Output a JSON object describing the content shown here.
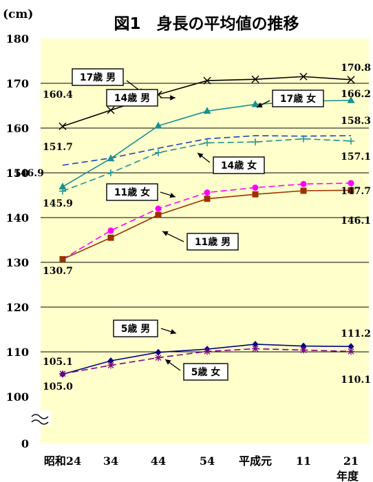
{
  "chart_data": {
    "type": "line",
    "title": "図1　身長の平均値の推移",
    "yunit": "(cm)",
    "ylim": [
      100,
      180
    ],
    "y_ticks": [
      "0",
      "100",
      "110",
      "120",
      "130",
      "140",
      "150",
      "160",
      "170",
      "180"
    ],
    "y_break": true,
    "categories": [
      "昭和24",
      "34",
      "44",
      "54",
      "平成元",
      "11",
      "21"
    ],
    "x_extra_label": "年度",
    "x": [
      24,
      34,
      44,
      54,
      64,
      74,
      84
    ],
    "grid": true,
    "series": [
      {
        "name": "17歳 男",
        "color": "#000000",
        "dash": "solid",
        "marker": "x",
        "x": [
          24,
          34,
          44,
          54,
          64,
          74,
          84
        ],
        "values": [
          160.4,
          164.0,
          167.5,
          170.6,
          170.9,
          171.5,
          170.8
        ]
      },
      {
        "name": "17歳 女",
        "color": "#1f3fbf",
        "dash": "dash",
        "marker": "none",
        "x": [
          24,
          34,
          44,
          54,
          64,
          74,
          84
        ],
        "values": [
          151.7,
          153.3,
          155.5,
          157.6,
          158.3,
          158.2,
          158.3
        ]
      },
      {
        "name": "14歳 男",
        "color": "#1a9090",
        "dash": "solid",
        "marker": "triangle",
        "x": [
          24,
          34,
          44,
          54,
          64,
          74,
          84
        ],
        "values": [
          146.9,
          153.2,
          160.5,
          163.8,
          165.3,
          166.0,
          166.2
        ]
      },
      {
        "name": "14歳 女",
        "color": "#1a9090",
        "dash": "dash",
        "marker": "plus",
        "x": [
          24,
          34,
          44,
          54,
          64,
          74,
          84
        ],
        "values": [
          145.9,
          150.0,
          154.5,
          156.7,
          156.9,
          157.6,
          157.1
        ]
      },
      {
        "name": "11歳 女",
        "color": "#ff00ff",
        "dash": "dash",
        "marker": "circle",
        "x": [
          24,
          34,
          44,
          54,
          64,
          74,
          84
        ],
        "values": [
          130.7,
          137.1,
          142.0,
          145.6,
          146.7,
          147.5,
          147.7
        ]
      },
      {
        "name": "11歳 男",
        "color": "#993300",
        "dash": "solid",
        "marker": "square",
        "x": [
          24,
          34,
          44,
          54,
          64,
          74,
          84
        ],
        "values": [
          130.7,
          135.5,
          140.6,
          144.2,
          145.2,
          146.0,
          146.1
        ]
      },
      {
        "name": "5歳 男",
        "color": "#000080",
        "dash": "solid",
        "marker": "diamond",
        "x": [
          24,
          34,
          44,
          54,
          64,
          74,
          84
        ],
        "values": [
          105.0,
          108.0,
          109.9,
          110.6,
          111.7,
          111.3,
          111.2
        ]
      },
      {
        "name": "5歳 女",
        "color": "#800080",
        "dash": "dash",
        "marker": "star",
        "x": [
          24,
          34,
          44,
          54,
          64,
          74,
          84
        ],
        "values": [
          105.1,
          107.0,
          108.7,
          110.1,
          110.7,
          110.4,
          110.1
        ]
      }
    ],
    "annotations": [
      "160.4",
      "170.8",
      "166.2",
      "158.3",
      "151.7",
      "157.1",
      "146.9",
      "145.9",
      "147.7",
      "146.1",
      "130.7",
      "111.2",
      "105.1",
      "105.0",
      "110.1"
    ]
  },
  "colors": {
    "plot_background": "#ffffcc",
    "gridline": "#000000"
  }
}
